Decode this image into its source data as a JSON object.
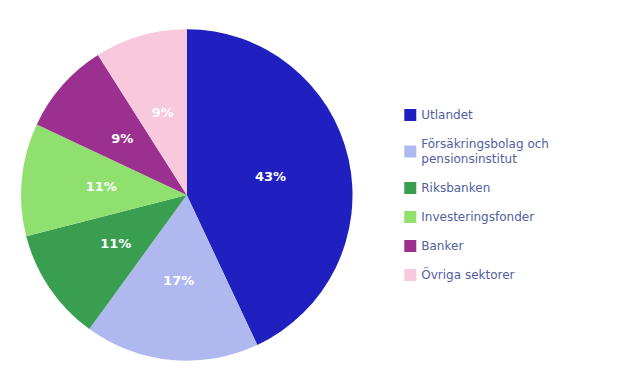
{
  "chart_data": {
    "type": "pie",
    "categories": [
      "Utlandet",
      "Försäkringsbolag och\npensionsinstitut",
      "Riksbanken",
      "Investeringsfonder",
      "Banker",
      "Övriga sektorer"
    ],
    "values": [
      43,
      17,
      11,
      11,
      9,
      9
    ],
    "value_labels": [
      "43%",
      "17%",
      "11%",
      "11%",
      "9%",
      "9%"
    ],
    "colors": [
      "#2020c0",
      "#b0b8f0",
      "#3a9e50",
      "#90e070",
      "#9b3090",
      "#f8c8dc"
    ],
    "data_labels": true,
    "legend": "right"
  }
}
